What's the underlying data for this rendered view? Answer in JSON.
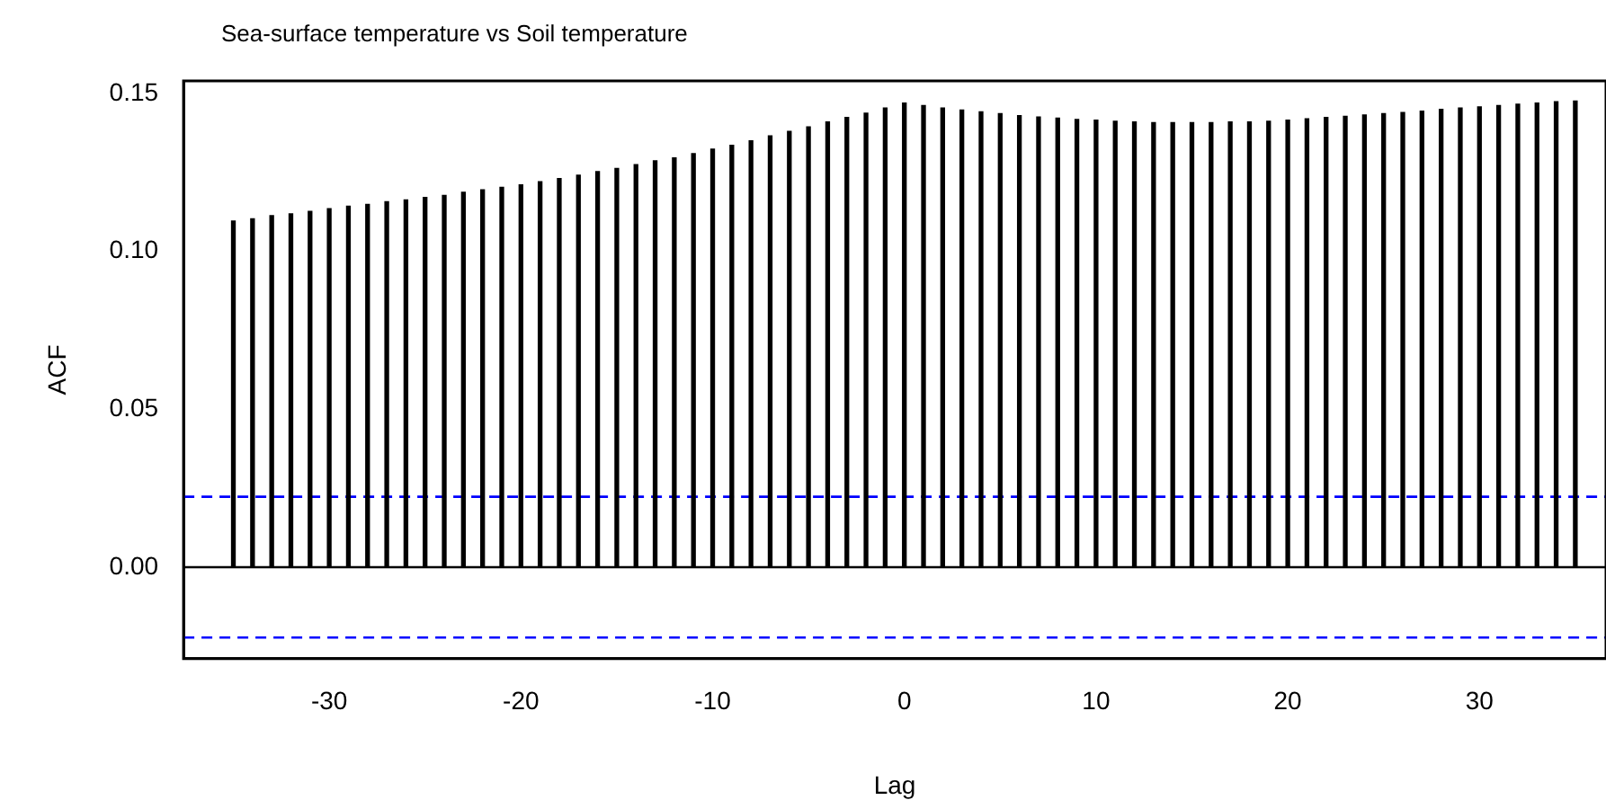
{
  "chart_data": {
    "type": "bar",
    "title": "Sea-surface temperature vs Soil temperature",
    "xlabel": "Lag",
    "ylabel": "ACF",
    "x": [
      -35,
      -34,
      -33,
      -32,
      -31,
      -30,
      -29,
      -28,
      -27,
      -26,
      -25,
      -24,
      -23,
      -22,
      -21,
      -20,
      -19,
      -18,
      -17,
      -16,
      -15,
      -14,
      -13,
      -12,
      -11,
      -10,
      -9,
      -8,
      -7,
      -6,
      -5,
      -4,
      -3,
      -2,
      -1,
      0,
      1,
      2,
      3,
      4,
      5,
      6,
      7,
      8,
      9,
      10,
      11,
      12,
      13,
      14,
      15,
      16,
      17,
      18,
      19,
      20,
      21,
      22,
      23,
      24,
      25,
      26,
      27,
      28,
      29,
      30,
      31,
      32,
      33,
      34,
      35
    ],
    "series": [
      {
        "color": "#000000",
        "values": [
          0.1096,
          0.1103,
          0.1113,
          0.1119,
          0.1127,
          0.1135,
          0.1143,
          0.1149,
          0.1157,
          0.1163,
          0.1171,
          0.1177,
          0.1187,
          0.1195,
          0.1203,
          0.1211,
          0.1221,
          0.1231,
          0.1241,
          0.1253,
          0.1263,
          0.1275,
          0.1287,
          0.1296,
          0.131,
          0.1324,
          0.1336,
          0.135,
          0.1366,
          0.138,
          0.1394,
          0.141,
          0.1424,
          0.1438,
          0.1454,
          0.147,
          0.1462,
          0.1454,
          0.1448,
          0.1442,
          0.1436,
          0.143,
          0.1426,
          0.1422,
          0.1418,
          0.1416,
          0.1412,
          0.141,
          0.1408,
          0.1408,
          0.1408,
          0.1408,
          0.141,
          0.141,
          0.1412,
          0.1416,
          0.142,
          0.1424,
          0.1428,
          0.1432,
          0.1436,
          0.144,
          0.1444,
          0.145,
          0.1454,
          0.1458,
          0.1462,
          0.1466,
          0.147,
          0.1474,
          0.1476
        ]
      }
    ],
    "xlim": [
      -37.6,
      36.6
    ],
    "xticks": [
      -30,
      -20,
      -10,
      0,
      10,
      20,
      30
    ],
    "ylim": [
      -0.029,
      0.154
    ],
    "yticks": [
      {
        "value": 0,
        "label": "0.00"
      },
      {
        "value": 0.05,
        "label": "0.05"
      },
      {
        "value": 0.1,
        "label": "0.10"
      },
      {
        "value": 0.15,
        "label": "0.15"
      }
    ],
    "ref_lines": [
      {
        "axis": "y",
        "value": 0,
        "color": "#000000",
        "line_style": "solid"
      },
      {
        "axis": "y",
        "value": 0.0223,
        "color": "#0000ff",
        "line_style": "dashed"
      },
      {
        "axis": "y",
        "value": -0.0223,
        "color": "#0000ff",
        "line_style": "dashed"
      }
    ],
    "grid": false,
    "legend": false
  }
}
